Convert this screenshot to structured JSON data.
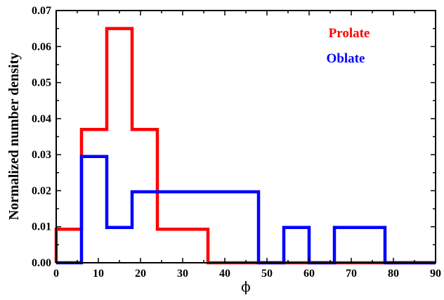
{
  "chart_data": {
    "type": "histogram-step",
    "xlabel": "ϕ",
    "ylabel": "Normalized number density",
    "xlim": [
      0,
      90
    ],
    "ylim": [
      0,
      0.07
    ],
    "xticks": [
      0,
      10,
      20,
      30,
      40,
      50,
      60,
      70,
      80,
      90
    ],
    "yticks": [
      0.0,
      0.01,
      0.02,
      0.03,
      0.04,
      0.05,
      0.06,
      0.07
    ],
    "xtick_labels": [
      "0",
      "10",
      "20",
      "30",
      "40",
      "50",
      "60",
      "70",
      "80",
      "90"
    ],
    "ytick_labels": [
      "0.00",
      "0.01",
      "0.02",
      "0.03",
      "0.04",
      "0.05",
      "0.06",
      "0.07"
    ],
    "bin_edges": [
      0,
      6,
      12,
      18,
      24,
      30,
      36,
      42,
      48,
      54,
      60,
      66,
      72,
      78,
      84,
      90
    ],
    "series": [
      {
        "name": "Prolate",
        "color": "#ff0000",
        "values": [
          0.0093,
          0.037,
          0.065,
          0.037,
          0.0093,
          0.0093,
          0,
          0,
          0,
          0,
          0,
          0,
          0,
          0,
          0
        ]
      },
      {
        "name": "Oblate",
        "color": "#0000ff",
        "values": [
          0,
          0.0295,
          0.0098,
          0.0197,
          0.0197,
          0.0197,
          0.0197,
          0.0197,
          0,
          0.0098,
          0,
          0.0098,
          0.0098,
          0,
          0
        ]
      }
    ],
    "legend_position": "top-right",
    "grid": false
  }
}
